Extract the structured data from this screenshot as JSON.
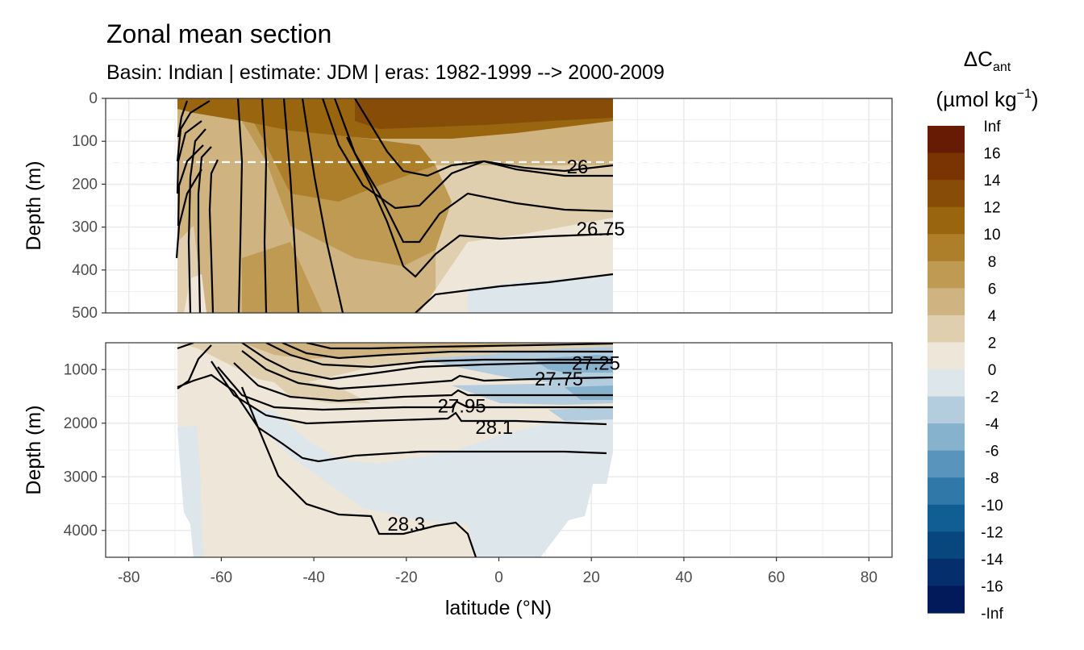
{
  "chart_data": {
    "type": "contour-section",
    "title": "Zonal mean section",
    "subtitle": "Basin: Indian | estimate: JDM  | eras: 1982-1999 --> 2000-2009",
    "xlabel": "latitude (°N)",
    "x_ticks": [
      "-80",
      "-60",
      "-40",
      "-20",
      "0",
      "20",
      "40",
      "60",
      "80"
    ],
    "xlim": [
      -85,
      85
    ],
    "data_extent_lat": [
      -69.5,
      24.5
    ],
    "panels": [
      {
        "name": "upper",
        "ylabel": "Depth (m)",
        "ylim": [
          0,
          500
        ],
        "y_ticks": [
          "0",
          "100",
          "200",
          "300",
          "400",
          "500"
        ],
        "reference_line_depth": 150
      },
      {
        "name": "lower",
        "ylabel": "Depth (m)",
        "ylim": [
          500,
          4500
        ],
        "y_ticks": [
          "1000",
          "2000",
          "3000",
          "4000"
        ]
      }
    ],
    "contour_labels": [
      {
        "text": "26",
        "panel": "upper",
        "lat": 17,
        "depth": 175
      },
      {
        "text": "26.75",
        "panel": "upper",
        "lat": 22,
        "depth": 320
      },
      {
        "text": "27.25",
        "panel": "lower",
        "lat": 21,
        "depth": 1000
      },
      {
        "text": "27.75",
        "panel": "lower",
        "lat": 13,
        "depth": 1300
      },
      {
        "text": "27.95",
        "panel": "lower",
        "lat": -8,
        "depth": 1800
      },
      {
        "text": "28.1",
        "panel": "lower",
        "lat": -1,
        "depth": 2200
      },
      {
        "text": "28.3",
        "panel": "lower",
        "lat": -20,
        "depth": 4000
      }
    ],
    "legend": {
      "title": "ΔC",
      "title_sub": "ant",
      "unit": "(µmol kg",
      "unit_sup": "−1",
      "unit_end": ")",
      "labels": [
        "Inf",
        "16",
        "14",
        "12",
        "10",
        "8",
        "6",
        "4",
        "2",
        "0",
        "-2",
        "-4",
        "-6",
        "-8",
        "-10",
        "-12",
        "-14",
        "-16",
        "-Inf"
      ],
      "colors": [
        "#671A04",
        "#7A3404",
        "#874C07",
        "#99650F",
        "#AE7F2A",
        "#BF9A53",
        "#CFB381",
        "#E0CFAE",
        "#EEE6D8",
        "#DCE6EB",
        "#B3CDDE",
        "#86B2CE",
        "#5894BC",
        "#2F78A7",
        "#115E94",
        "#08467E",
        "#052E6C",
        "#021A5A"
      ]
    }
  }
}
